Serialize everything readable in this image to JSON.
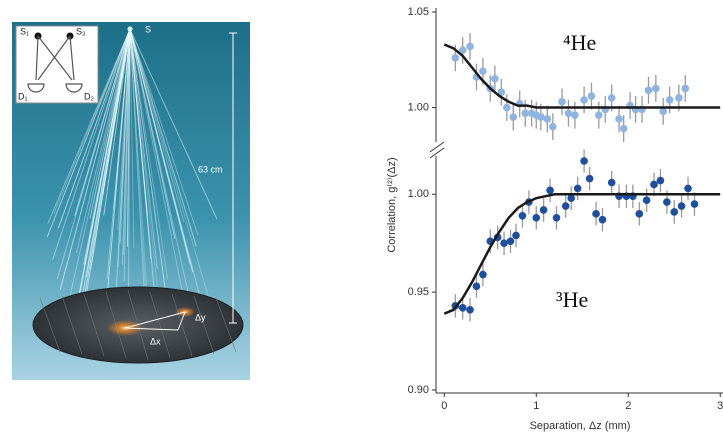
{
  "illustration": {
    "source_label": "S",
    "distance_label": "63 cm",
    "dx_label": "Δx",
    "dy_label": "Δy",
    "inset": {
      "sources": [
        "S₁",
        "S₂"
      ],
      "detectors": [
        "D₁",
        "D₂"
      ]
    }
  },
  "chart_data": [
    {
      "type": "scatter",
      "annotation": "⁴He",
      "xlim": [
        -0.09,
        3.03
      ],
      "ylim": [
        0.983,
        1.05
      ],
      "yticks": [
        {
          "value": 1,
          "label": "1.00"
        },
        1.05
      ],
      "series": [
        {
          "kind": "points",
          "color": "#8fb4df",
          "x": [
            0.12,
            0.2,
            0.28,
            0.35,
            0.42,
            0.5,
            0.55,
            0.62,
            0.68,
            0.75,
            0.82,
            0.88,
            0.95,
            1.0,
            1.05,
            1.12,
            1.18,
            1.28,
            1.35,
            1.42,
            1.52,
            1.6,
            1.68,
            1.75,
            1.82,
            1.9,
            1.95,
            2.02,
            2.08,
            2.15,
            2.22,
            2.3,
            2.38,
            2.45,
            2.55,
            2.62
          ],
          "values": [
            1.026,
            1.03,
            1.032,
            1.016,
            1.019,
            1.01,
            1.015,
            1.008,
            1.0,
            0.995,
            1.002,
            0.997,
            0.997,
            0.996,
            0.995,
            0.994,
            0.99,
            1.003,
            0.997,
            0.996,
            1.004,
            1.006,
            0.996,
            0.999,
            1.005,
            0.994,
            0.989,
            1.001,
            0.999,
            0.999,
            1.009,
            1.01,
            0.998,
            1.004,
            1.005,
            1.01
          ],
          "errors": [
            0.007,
            0.007,
            0.007,
            0.007,
            0.007,
            0.007,
            0.007,
            0.007,
            0.007,
            0.007,
            0.007,
            0.007,
            0.007,
            0.007,
            0.007,
            0.007,
            0.007,
            0.007,
            0.007,
            0.007,
            0.007,
            0.007,
            0.007,
            0.007,
            0.007,
            0.007,
            0.007,
            0.007,
            0.007,
            0.007,
            0.007,
            0.007,
            0.007,
            0.007,
            0.007,
            0.007
          ]
        },
        {
          "kind": "line",
          "color": "#1a1a1a",
          "x": [
            0,
            0.1,
            0.2,
            0.3,
            0.4,
            0.5,
            0.6,
            0.7,
            0.8,
            0.9,
            1.0,
            1.1,
            1.2,
            3.0
          ],
          "values": [
            1.033,
            1.031,
            1.027,
            1.021,
            1.015,
            1.01,
            1.006,
            1.003,
            1.001,
            1.001,
            1.0,
            1.0,
            1.0,
            1.0
          ]
        }
      ]
    },
    {
      "type": "scatter",
      "annotation": "³He",
      "xlabel": "Separation, Δz (mm)",
      "ylabel": "Correlation, g⁽²⁾(Δz)",
      "xlim": [
        -0.09,
        3.03
      ],
      "ylim": [
        0.9,
        1.017
      ],
      "xticks": [
        0,
        1,
        2,
        3
      ],
      "yticks": [
        {
          "value": 0.9,
          "label": "0.90"
        },
        0.95,
        {
          "value": 1,
          "label": "1.00"
        }
      ],
      "series": [
        {
          "kind": "points",
          "color": "#1f4e9c",
          "x": [
            0.12,
            0.2,
            0.28,
            0.35,
            0.42,
            0.5,
            0.58,
            0.65,
            0.72,
            0.78,
            0.85,
            0.92,
            1.0,
            1.08,
            1.15,
            1.22,
            1.32,
            1.38,
            1.45,
            1.52,
            1.58,
            1.65,
            1.72,
            1.82,
            1.9,
            1.98,
            2.05,
            2.12,
            2.2,
            2.28,
            2.35,
            2.42,
            2.5,
            2.58,
            2.65,
            2.72
          ],
          "values": [
            0.943,
            0.942,
            0.941,
            0.953,
            0.959,
            0.976,
            0.978,
            0.975,
            0.976,
            0.979,
            0.989,
            0.996,
            0.988,
            0.992,
            1.002,
            0.988,
            0.994,
            0.998,
            1.003,
            1.017,
            1.008,
            0.99,
            0.987,
            1.006,
            0.999,
            0.999,
            0.999,
            0.99,
            0.997,
            1.005,
            1.007,
            0.996,
            0.991,
            0.994,
            1.003,
            0.995
          ],
          "errors": [
            0.006,
            0.006,
            0.006,
            0.006,
            0.006,
            0.006,
            0.006,
            0.006,
            0.006,
            0.006,
            0.006,
            0.006,
            0.006,
            0.006,
            0.006,
            0.006,
            0.006,
            0.006,
            0.006,
            0.006,
            0.006,
            0.006,
            0.006,
            0.006,
            0.006,
            0.006,
            0.006,
            0.006,
            0.006,
            0.006,
            0.006,
            0.006,
            0.006,
            0.006,
            0.006,
            0.006
          ]
        },
        {
          "kind": "line",
          "color": "#1a1a1a",
          "x": [
            0,
            0.1,
            0.2,
            0.3,
            0.4,
            0.5,
            0.6,
            0.7,
            0.8,
            0.9,
            1.0,
            1.1,
            1.2,
            3.0
          ],
          "values": [
            0.939,
            0.941,
            0.947,
            0.955,
            0.964,
            0.973,
            0.981,
            0.988,
            0.993,
            0.996,
            0.998,
            0.999,
            1.0,
            1.0
          ]
        }
      ]
    }
  ]
}
